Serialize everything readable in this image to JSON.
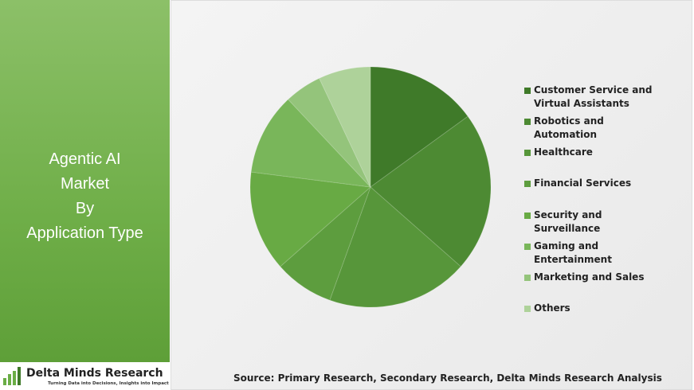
{
  "chart_data": {
    "type": "pie",
    "title_lines": [
      "Agentic AI",
      "Market",
      "By",
      "Application Type"
    ],
    "categories": [
      "Customer Service and Virtual Assistants",
      "Robotics and Automation",
      "Healthcare",
      "Financial Services",
      "Security and Surveillance",
      "Gaming and Entertainment",
      "Marketing and Sales",
      "Others"
    ],
    "values": [
      15,
      21.5,
      19,
      8,
      13.5,
      11,
      5,
      7
    ],
    "colors": [
      "#3f7a29",
      "#4d8a33",
      "#57963a",
      "#5d9d3e",
      "#68aa44",
      "#79b65a",
      "#94c47b",
      "#aed29a"
    ],
    "source": "Source: Primary Research, Secondary Research, Delta Minds Research Analysis",
    "brand": {
      "name": "Delta Minds Research",
      "tagline": "Turning Data into Decisions, Insights into Impact"
    }
  }
}
